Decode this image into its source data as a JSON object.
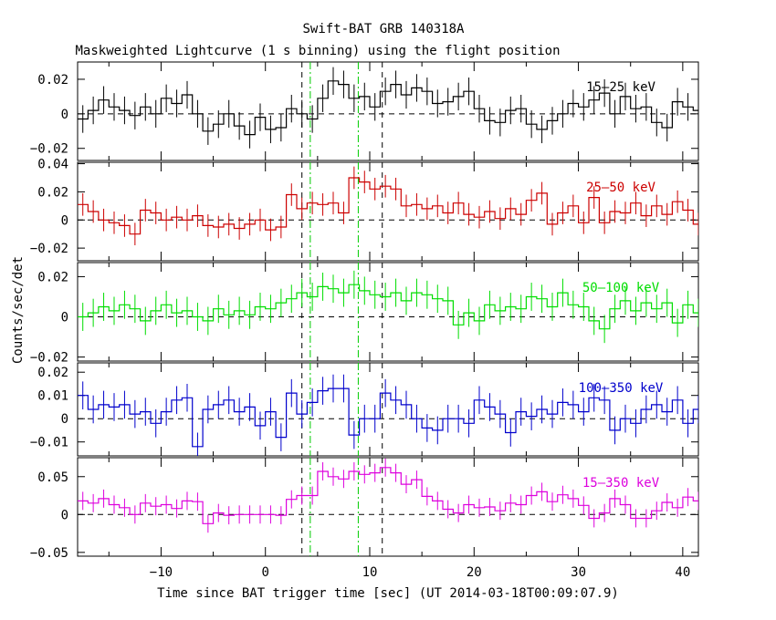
{
  "chart_data": {
    "type": "line",
    "title": "Swift-BAT GRB 140318A",
    "subtitle": "Maskweighted Lightcurve (1 s binning) using the flight position",
    "xlabel": "Time since BAT trigger time [sec] (UT 2014-03-18T00:09:07.9)",
    "ylabel": "Counts/sec/det",
    "xlim": [
      -18,
      41.5
    ],
    "x_ticks": [
      -10,
      0,
      10,
      20,
      30,
      40
    ],
    "x_tick_labels": [
      "−10",
      "0",
      "10",
      "20",
      "30",
      "40"
    ],
    "bin_start": -18,
    "bin_width": 1,
    "vlines": [
      {
        "x": 3.5,
        "color": "#000000",
        "style": "dashed"
      },
      {
        "x": 11.2,
        "color": "#000000",
        "style": "dashed"
      },
      {
        "x": 4.3,
        "color": "#00cc00",
        "style": "dashdot"
      },
      {
        "x": 8.9,
        "color": "#00cc00",
        "style": "dashdot"
      }
    ],
    "panels": [
      {
        "band": "15–25 keV",
        "color": "#000000",
        "ylim": [
          -0.027,
          0.03
        ],
        "yticks": [
          0.02,
          0,
          -0.02
        ],
        "ytick_labels": [
          "0.02",
          "0",
          "−0.02"
        ],
        "values": [
          -0.003,
          0.002,
          0.008,
          0.004,
          0.002,
          -0.001,
          0.004,
          0,
          0.009,
          0.006,
          0.011,
          0,
          -0.01,
          -0.006,
          0,
          -0.007,
          -0.012,
          -0.002,
          -0.009,
          -0.008,
          0.003,
          0,
          -0.003,
          0.009,
          0.019,
          0.017,
          0.009,
          0.01,
          0.004,
          0.013,
          0.017,
          0.011,
          0.015,
          0.013,
          0.006,
          0.007,
          0.01,
          0.013,
          0.003,
          -0.004,
          -0.005,
          0.002,
          0.003,
          -0.006,
          -0.009,
          -0.004,
          0,
          0.006,
          0.004,
          0.008,
          0.012,
          0,
          0.01,
          0.003,
          0.004,
          -0.005,
          -0.008,
          0.007,
          0.004,
          0.002
        ],
        "errors": [
          0.008,
          0.008,
          0.008,
          0.008,
          0.008,
          0.008,
          0.008,
          0.008,
          0.008,
          0.008,
          0.008,
          0.008,
          0.008,
          0.008,
          0.008,
          0.008,
          0.008,
          0.008,
          0.008,
          0.008,
          0.008,
          0.008,
          0.008,
          0.008,
          0.008,
          0.008,
          0.008,
          0.008,
          0.008,
          0.008,
          0.008,
          0.008,
          0.008,
          0.008,
          0.008,
          0.008,
          0.008,
          0.008,
          0.008,
          0.008,
          0.008,
          0.008,
          0.008,
          0.008,
          0.008,
          0.008,
          0.008,
          0.008,
          0.008,
          0.008,
          0.008,
          0.008,
          0.008,
          0.008,
          0.008,
          0.008,
          0.008,
          0.008,
          0.008,
          0.008
        ]
      },
      {
        "band": "25–50 keV",
        "color": "#cc0000",
        "ylim": [
          -0.029,
          0.041
        ],
        "yticks": [
          0.04,
          0.02,
          0,
          -0.02
        ],
        "ytick_labels": [
          "0.04",
          "0.02",
          "0",
          "−0.02"
        ],
        "values": [
          0.011,
          0.006,
          0,
          -0.002,
          -0.004,
          -0.01,
          0.007,
          0.005,
          0,
          0.002,
          0,
          0.003,
          -0.004,
          -0.005,
          -0.003,
          -0.006,
          -0.003,
          0,
          -0.007,
          -0.005,
          0.018,
          0.008,
          0.012,
          0.011,
          0.012,
          0.005,
          0.03,
          0.027,
          0.022,
          0.024,
          0.022,
          0.01,
          0.011,
          0.008,
          0.01,
          0.005,
          0.012,
          0.004,
          0.002,
          0.006,
          0.001,
          0.008,
          0.004,
          0.014,
          0.019,
          -0.003,
          0.005,
          0.01,
          -0.002,
          0.016,
          -0.002,
          0.006,
          0.005,
          0.012,
          0.003,
          0.01,
          0.004,
          0.013,
          0.007,
          -0.003
        ],
        "errors": [
          0.008,
          0.008,
          0.008,
          0.008,
          0.008,
          0.008,
          0.008,
          0.008,
          0.008,
          0.008,
          0.008,
          0.008,
          0.008,
          0.008,
          0.008,
          0.008,
          0.008,
          0.008,
          0.008,
          0.008,
          0.008,
          0.008,
          0.008,
          0.008,
          0.008,
          0.008,
          0.008,
          0.008,
          0.008,
          0.008,
          0.008,
          0.008,
          0.008,
          0.008,
          0.008,
          0.008,
          0.008,
          0.008,
          0.008,
          0.008,
          0.008,
          0.008,
          0.008,
          0.008,
          0.008,
          0.008,
          0.008,
          0.008,
          0.008,
          0.008,
          0.008,
          0.008,
          0.008,
          0.008,
          0.008,
          0.008,
          0.008,
          0.008,
          0.008,
          0.008
        ]
      },
      {
        "band": "50–100 keV",
        "color": "#00dd00",
        "ylim": [
          -0.022,
          0.027
        ],
        "yticks": [
          0.02,
          0,
          -0.02
        ],
        "ytick_labels": [
          "0.02",
          "0",
          "−0.02"
        ],
        "values": [
          0,
          0.002,
          0.005,
          0.003,
          0.006,
          0.004,
          -0.002,
          0.003,
          0.006,
          0.002,
          0.003,
          0,
          -0.002,
          0.004,
          0.001,
          0.003,
          0.001,
          0.005,
          0.004,
          0.007,
          0.009,
          0.012,
          0.01,
          0.015,
          0.014,
          0.012,
          0.016,
          0.013,
          0.011,
          0.01,
          0.012,
          0.008,
          0.012,
          0.011,
          0.009,
          0.008,
          -0.004,
          0.002,
          -0.002,
          0.006,
          0.003,
          0.005,
          0.004,
          0.01,
          0.009,
          0.005,
          0.012,
          0.006,
          0.005,
          -0.002,
          -0.006,
          0.004,
          0.008,
          0.003,
          0.007,
          0.004,
          0.007,
          -0.003,
          0.006,
          0.002
        ],
        "errors": [
          0.007,
          0.007,
          0.007,
          0.007,
          0.007,
          0.007,
          0.007,
          0.007,
          0.007,
          0.007,
          0.007,
          0.007,
          0.007,
          0.007,
          0.007,
          0.007,
          0.007,
          0.007,
          0.007,
          0.007,
          0.007,
          0.007,
          0.007,
          0.007,
          0.007,
          0.007,
          0.007,
          0.007,
          0.007,
          0.007,
          0.007,
          0.007,
          0.007,
          0.007,
          0.007,
          0.007,
          0.007,
          0.007,
          0.007,
          0.007,
          0.007,
          0.007,
          0.007,
          0.007,
          0.007,
          0.007,
          0.007,
          0.007,
          0.007,
          0.007,
          0.007,
          0.007,
          0.007,
          0.007,
          0.007,
          0.007,
          0.007,
          0.007,
          0.007,
          0.007
        ]
      },
      {
        "band": "100–350 keV",
        "color": "#0000cc",
        "ylim": [
          -0.016,
          0.024
        ],
        "yticks": [
          0.02,
          0.01,
          0,
          -0.01
        ],
        "ytick_labels": [
          "0.02",
          "0.01",
          "0",
          "−0.01"
        ],
        "values": [
          0.01,
          0.004,
          0.006,
          0.005,
          0.006,
          0.002,
          0.003,
          -0.002,
          0.003,
          0.008,
          0.009,
          -0.012,
          0.004,
          0.006,
          0.008,
          0.003,
          0.005,
          -0.003,
          0.003,
          -0.008,
          0.011,
          0.002,
          0.007,
          0.012,
          0.013,
          0.013,
          -0.007,
          0,
          0,
          0.011,
          0.008,
          0.006,
          0,
          -0.004,
          -0.005,
          0,
          0,
          -0.002,
          0.008,
          0.005,
          0.002,
          -0.006,
          0.003,
          0.001,
          0.004,
          0.002,
          0.007,
          0.006,
          0.003,
          0.009,
          0.008,
          -0.005,
          0,
          -0.002,
          0.004,
          0.006,
          0.003,
          0.008,
          -0.002,
          0.004
        ],
        "errors": [
          0.006,
          0.006,
          0.006,
          0.006,
          0.006,
          0.006,
          0.006,
          0.006,
          0.006,
          0.006,
          0.006,
          0.006,
          0.006,
          0.006,
          0.006,
          0.006,
          0.006,
          0.006,
          0.006,
          0.006,
          0.006,
          0.006,
          0.006,
          0.006,
          0.006,
          0.006,
          0.006,
          0.006,
          0.006,
          0.006,
          0.006,
          0.006,
          0.006,
          0.006,
          0.006,
          0.006,
          0.006,
          0.006,
          0.006,
          0.006,
          0.006,
          0.006,
          0.006,
          0.006,
          0.006,
          0.006,
          0.006,
          0.006,
          0.006,
          0.006,
          0.006,
          0.006,
          0.006,
          0.006,
          0.006,
          0.006,
          0.006,
          0.006,
          0.006,
          0.006
        ]
      },
      {
        "band": "15–350 keV",
        "color": "#dd00dd",
        "ylim": [
          -0.055,
          0.075
        ],
        "yticks": [
          0.05,
          0,
          -0.05
        ],
        "ytick_labels": [
          "0.05",
          "0",
          "−0.05"
        ],
        "values": [
          0.018,
          0.015,
          0.021,
          0.013,
          0.009,
          0,
          0.015,
          0.011,
          0.013,
          0.008,
          0.018,
          0.017,
          -0.012,
          0.002,
          -0.001,
          0,
          0,
          0,
          0,
          -0.001,
          0.02,
          0.025,
          0.025,
          0.057,
          0.05,
          0.047,
          0.057,
          0.053,
          0.055,
          0.062,
          0.055,
          0.04,
          0.046,
          0.024,
          0.018,
          0.007,
          0.002,
          0.013,
          0.009,
          0.01,
          0.005,
          0.015,
          0.013,
          0.025,
          0.03,
          0.017,
          0.026,
          0.021,
          0.012,
          -0.005,
          0.002,
          0.021,
          0.013,
          -0.005,
          -0.005,
          0.005,
          0.016,
          0.009,
          0.023,
          0.018
        ],
        "errors": [
          0.012,
          0.012,
          0.012,
          0.012,
          0.012,
          0.012,
          0.012,
          0.012,
          0.012,
          0.012,
          0.012,
          0.012,
          0.012,
          0.012,
          0.012,
          0.012,
          0.012,
          0.012,
          0.012,
          0.012,
          0.012,
          0.012,
          0.012,
          0.012,
          0.012,
          0.012,
          0.012,
          0.012,
          0.012,
          0.012,
          0.012,
          0.012,
          0.012,
          0.012,
          0.012,
          0.012,
          0.012,
          0.012,
          0.012,
          0.012,
          0.012,
          0.012,
          0.012,
          0.012,
          0.012,
          0.012,
          0.012,
          0.012,
          0.012,
          0.012,
          0.012,
          0.012,
          0.012,
          0.012,
          0.012,
          0.012,
          0.012,
          0.012,
          0.012,
          0.012
        ]
      }
    ]
  }
}
